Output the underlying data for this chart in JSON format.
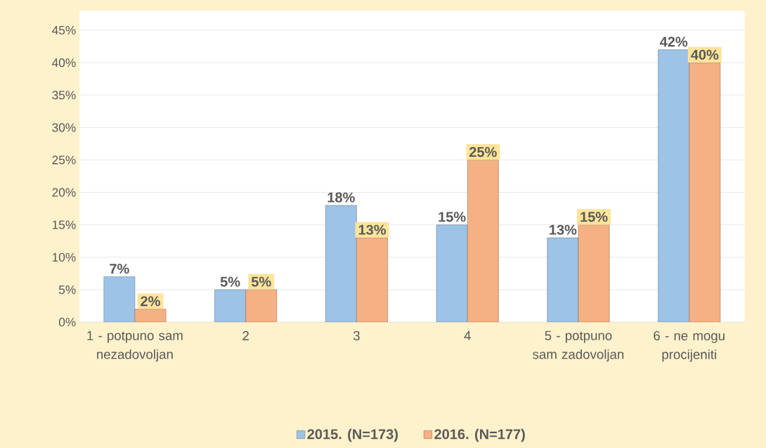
{
  "chart_data": {
    "type": "bar",
    "categories": [
      "1 - potpuno sam nezadovoljan",
      "2",
      "3",
      "4",
      "5 - potpuno sam zadovoljan",
      "6 - ne mogu procijeniti"
    ],
    "series": [
      {
        "name": "2015. (N=173)",
        "color": "#9dc3e6",
        "values": [
          7,
          5,
          18,
          15,
          13,
          42
        ],
        "value_labels": [
          "7%",
          "5%",
          "18%",
          "15%",
          "13%",
          "42%"
        ]
      },
      {
        "name": "2016. (N=177)",
        "color": "#f4b183",
        "values": [
          2,
          5,
          13,
          25,
          15,
          40
        ],
        "value_labels": [
          "2%",
          "5%",
          "13%",
          "25%",
          "15%",
          "40%"
        ]
      }
    ],
    "ylim": [
      0,
      48
    ],
    "yticks": [
      {
        "value": 0,
        "label": "0%"
      },
      {
        "value": 5,
        "label": "5%"
      },
      {
        "value": 10,
        "label": "10%"
      },
      {
        "value": 15,
        "label": "15%"
      },
      {
        "value": 20,
        "label": "20%"
      },
      {
        "value": 25,
        "label": "25%"
      },
      {
        "value": 30,
        "label": "30%"
      },
      {
        "value": 35,
        "label": "35%"
      },
      {
        "value": 40,
        "label": "40%"
      },
      {
        "value": 45,
        "label": "45%"
      }
    ],
    "grid": "y",
    "legend": "bottom"
  }
}
